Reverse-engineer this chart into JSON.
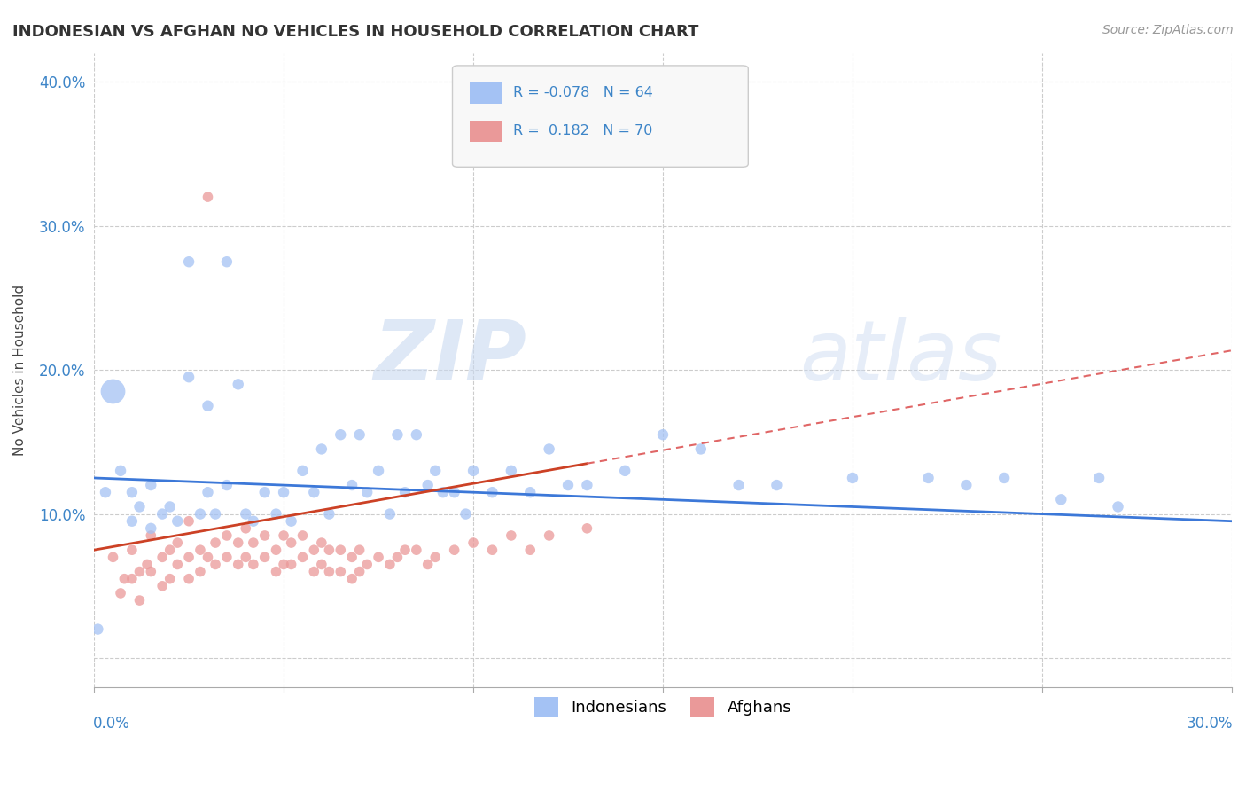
{
  "title": "INDONESIAN VS AFGHAN NO VEHICLES IN HOUSEHOLD CORRELATION CHART",
  "source": "Source: ZipAtlas.com",
  "ylabel": "No Vehicles in Household",
  "xlim": [
    0.0,
    0.3
  ],
  "ylim": [
    -0.02,
    0.42
  ],
  "watermark_zip": "ZIP",
  "watermark_atlas": "atlas",
  "indonesian_color": "#a4c2f4",
  "afghan_color": "#ea9999",
  "trend_indonesian_color": "#3c78d8",
  "trend_afghan_color": "#cc4125",
  "trend_afghan_dashed_color": "#e06666",
  "indonesian_circle_color": "#6fa8dc",
  "afghan_circle_color": "#e06666",
  "legend_box_color": "#f3f3f3",
  "legend_border_color": "#cccccc",
  "r1_val": "-0.078",
  "r2_val": " 0.182",
  "n1_val": "64",
  "n2_val": "70"
}
